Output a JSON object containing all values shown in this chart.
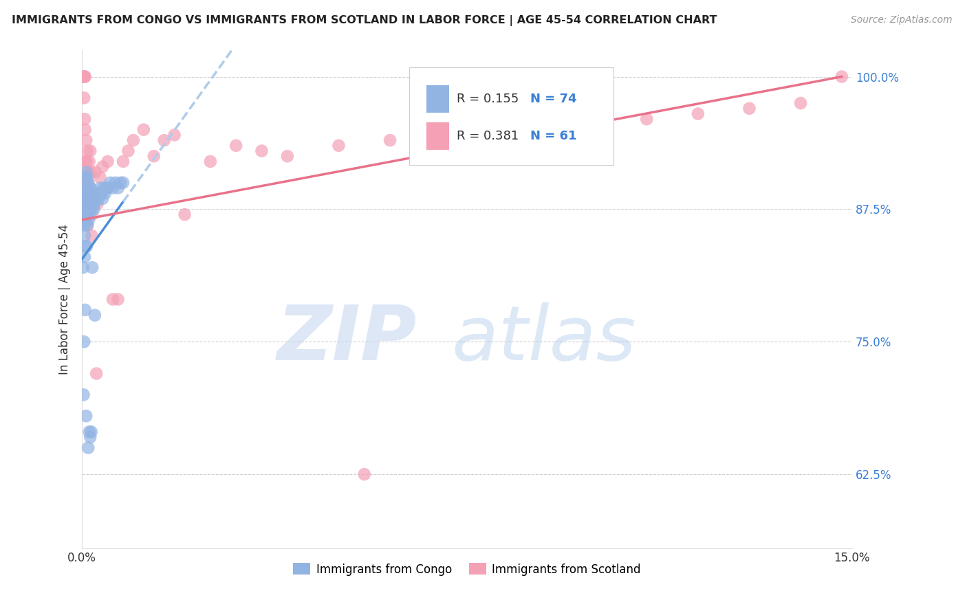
{
  "title": "IMMIGRANTS FROM CONGO VS IMMIGRANTS FROM SCOTLAND IN LABOR FORCE | AGE 45-54 CORRELATION CHART",
  "source": "Source: ZipAtlas.com",
  "ylabel": "In Labor Force | Age 45-54",
  "xlim": [
    0.0,
    0.15
  ],
  "ylim": [
    0.555,
    1.025
  ],
  "ytick_values": [
    0.625,
    0.75,
    0.875,
    1.0
  ],
  "ytick_labels": [
    "62.5%",
    "75.0%",
    "87.5%",
    "100.0%"
  ],
  "congo_color": "#92b4e3",
  "scotland_color": "#f4a0b5",
  "congo_R": 0.155,
  "congo_N": 74,
  "scotland_R": 0.381,
  "scotland_N": 61,
  "blue_color": "#3a7fd5",
  "congo_line_color": "#4d8fd6",
  "congo_dash_color": "#b0ccea",
  "scotland_line_color": "#e8728a",
  "watermark_zip_color": "#c8d8f0",
  "watermark_atlas_color": "#9fbfe8",
  "congo_scatter_x": [
    0.0002,
    0.0004,
    0.0005,
    0.0005,
    0.0006,
    0.0006,
    0.0007,
    0.0007,
    0.0007,
    0.0008,
    0.0008,
    0.0008,
    0.0009,
    0.0009,
    0.001,
    0.001,
    0.001,
    0.001,
    0.0011,
    0.0011,
    0.0012,
    0.0012,
    0.0013,
    0.0013,
    0.0013,
    0.0014,
    0.0014,
    0.0015,
    0.0015,
    0.0016,
    0.0016,
    0.0017,
    0.0017,
    0.0018,
    0.0018,
    0.0019,
    0.002,
    0.0021,
    0.0022,
    0.0023,
    0.0024,
    0.0025,
    0.0026,
    0.0028,
    0.003,
    0.0032,
    0.0034,
    0.0036,
    0.0038,
    0.004,
    0.0042,
    0.0045,
    0.0048,
    0.005,
    0.0055,
    0.006,
    0.0065,
    0.007,
    0.0075,
    0.008,
    0.0003,
    0.0004,
    0.0005,
    0.0006,
    0.0007,
    0.0008,
    0.0009,
    0.001,
    0.0012,
    0.0014,
    0.0016,
    0.0018,
    0.002,
    0.0025
  ],
  "congo_scatter_y": [
    0.82,
    0.86,
    0.875,
    0.85,
    0.89,
    0.87,
    0.905,
    0.885,
    0.865,
    0.91,
    0.89,
    0.87,
    0.895,
    0.875,
    0.905,
    0.89,
    0.875,
    0.86,
    0.895,
    0.88,
    0.9,
    0.885,
    0.895,
    0.88,
    0.865,
    0.885,
    0.87,
    0.895,
    0.88,
    0.89,
    0.875,
    0.895,
    0.88,
    0.89,
    0.875,
    0.885,
    0.89,
    0.885,
    0.88,
    0.875,
    0.88,
    0.885,
    0.885,
    0.885,
    0.89,
    0.885,
    0.89,
    0.895,
    0.89,
    0.885,
    0.895,
    0.89,
    0.895,
    0.895,
    0.9,
    0.895,
    0.9,
    0.895,
    0.9,
    0.9,
    0.7,
    0.75,
    0.83,
    0.78,
    0.84,
    0.68,
    0.84,
    0.87,
    0.65,
    0.665,
    0.66,
    0.665,
    0.82,
    0.775
  ],
  "scotland_scatter_x": [
    0.0002,
    0.0003,
    0.0004,
    0.0004,
    0.0005,
    0.0005,
    0.0006,
    0.0006,
    0.0007,
    0.0007,
    0.0008,
    0.0008,
    0.0009,
    0.0009,
    0.001,
    0.001,
    0.0011,
    0.0011,
    0.0012,
    0.0013,
    0.0014,
    0.0015,
    0.0016,
    0.0017,
    0.0018,
    0.0019,
    0.002,
    0.0022,
    0.0024,
    0.0026,
    0.0028,
    0.003,
    0.0035,
    0.004,
    0.005,
    0.006,
    0.007,
    0.008,
    0.009,
    0.01,
    0.012,
    0.014,
    0.016,
    0.018,
    0.02,
    0.025,
    0.03,
    0.035,
    0.04,
    0.05,
    0.06,
    0.07,
    0.08,
    0.09,
    0.1,
    0.11,
    0.12,
    0.13,
    0.14,
    0.148,
    0.055
  ],
  "scotland_scatter_y": [
    0.885,
    1.0,
    1.0,
    0.98,
    1.0,
    0.96,
    1.0,
    0.95,
    0.92,
    0.88,
    0.94,
    0.9,
    0.92,
    0.88,
    0.93,
    0.89,
    0.91,
    0.86,
    0.9,
    0.88,
    0.92,
    0.89,
    0.93,
    0.91,
    0.88,
    0.85,
    0.87,
    0.89,
    0.885,
    0.91,
    0.72,
    0.88,
    0.905,
    0.915,
    0.92,
    0.79,
    0.79,
    0.92,
    0.93,
    0.94,
    0.95,
    0.925,
    0.94,
    0.945,
    0.87,
    0.92,
    0.935,
    0.93,
    0.925,
    0.935,
    0.94,
    0.945,
    0.95,
    0.955,
    0.95,
    0.96,
    0.965,
    0.97,
    0.975,
    1.0,
    0.625
  ],
  "congo_line_x0": 0.0,
  "congo_line_x1": 0.008,
  "congo_line_y0": 0.828,
  "congo_line_y1": 0.882,
  "scotland_line_x0": 0.0,
  "scotland_line_x1": 0.148,
  "scotland_line_y0": 0.865,
  "scotland_line_y1": 1.0
}
